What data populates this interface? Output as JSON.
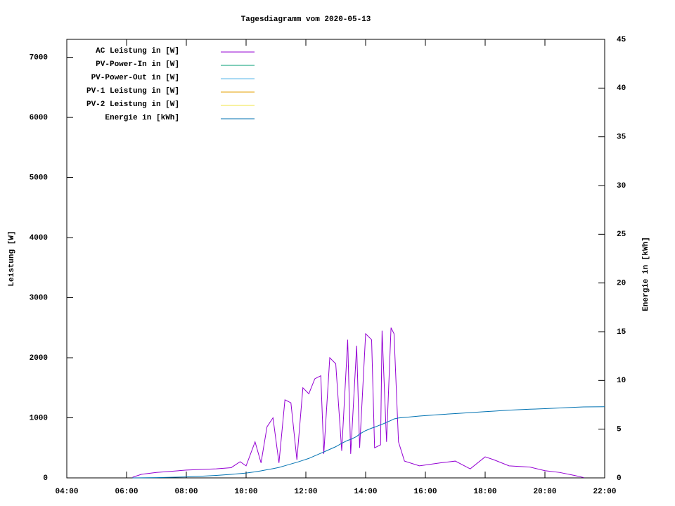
{
  "chart_data": {
    "type": "line",
    "title": "Tagesdiagramm vom 2020-05-13",
    "y_label": "Leistung [W]",
    "y2_label": "Energie in [kWh]",
    "x": [
      6.2,
      6.5,
      7.0,
      7.5,
      8.0,
      8.5,
      9.0,
      9.5,
      9.8,
      10.0,
      10.3,
      10.5,
      10.7,
      10.9,
      11.1,
      11.3,
      11.5,
      11.7,
      11.9,
      12.1,
      12.3,
      12.5,
      12.6,
      12.8,
      13.0,
      13.2,
      13.4,
      13.5,
      13.7,
      13.8,
      14.0,
      14.2,
      14.3,
      14.5,
      14.55,
      14.7,
      14.85,
      14.95,
      15.1,
      15.3,
      15.8,
      16.5,
      17.0,
      17.5,
      18.0,
      18.3,
      18.8,
      19.5,
      20.0,
      20.5,
      21.0,
      21.3,
      22.0
    ],
    "xlim": [
      4,
      22
    ],
    "xticks": [
      {
        "value": 4,
        "label": "04:00"
      },
      {
        "value": 6,
        "label": "06:00"
      },
      {
        "value": 8,
        "label": "08:00"
      },
      {
        "value": 10,
        "label": "10:00"
      },
      {
        "value": 12,
        "label": "12:00"
      },
      {
        "value": 14,
        "label": "14:00"
      },
      {
        "value": 16,
        "label": "16:00"
      },
      {
        "value": 18,
        "label": "18:00"
      },
      {
        "value": 20,
        "label": "20:00"
      },
      {
        "value": 22,
        "label": "22:00"
      }
    ],
    "ylim": [
      0,
      7300
    ],
    "yticks": [
      0,
      1000,
      2000,
      3000,
      4000,
      5000,
      6000,
      7000
    ],
    "y2lim": [
      0,
      45
    ],
    "y2ticks": [
      0,
      5,
      10,
      15,
      20,
      25,
      30,
      35,
      40,
      45
    ],
    "legend": "top-left",
    "series": [
      {
        "name": "AC Leistung in [W]",
        "color": "#9400d3",
        "values": [
          10,
          60,
          90,
          110,
          130,
          140,
          150,
          170,
          270,
          200,
          600,
          250,
          850,
          1000,
          250,
          1300,
          1250,
          300,
          1500,
          1400,
          1650,
          1700,
          400,
          2000,
          1900,
          450,
          2300,
          400,
          2200,
          500,
          2400,
          2300,
          500,
          550,
          2450,
          600,
          2500,
          2400,
          600,
          280,
          200,
          250,
          280,
          150,
          350,
          300,
          200,
          180,
          120,
          90,
          40,
          5,
          null
        ]
      },
      {
        "name": "PV-Power-In in [W]",
        "color": "#009e73",
        "values": [
          null,
          null,
          null,
          null,
          null,
          null,
          null,
          null,
          null,
          null,
          null,
          null,
          null,
          null,
          null,
          null,
          null,
          null,
          null,
          null,
          null,
          null,
          null,
          null,
          null,
          null,
          null,
          null,
          null,
          null,
          null,
          null,
          null,
          null,
          null,
          null,
          null,
          null,
          null,
          null,
          null,
          null,
          null,
          null,
          null,
          null,
          null,
          null,
          null,
          null,
          null,
          null,
          null
        ]
      },
      {
        "name": "PV-Power-Out in [W]",
        "color": "#56b4e9",
        "values": [
          null,
          null,
          null,
          null,
          null,
          null,
          null,
          null,
          null,
          null,
          null,
          null,
          null,
          null,
          null,
          null,
          null,
          null,
          null,
          null,
          null,
          null,
          null,
          null,
          null,
          null,
          null,
          null,
          null,
          null,
          null,
          null,
          null,
          null,
          null,
          null,
          null,
          null,
          null,
          null,
          null,
          null,
          null,
          null,
          null,
          null,
          null,
          null,
          null,
          null,
          null,
          null,
          null
        ]
      },
      {
        "name": "PV-1 Leistung in [W]",
        "color": "#e69f00",
        "values": [
          null,
          null,
          null,
          null,
          null,
          null,
          null,
          null,
          null,
          null,
          null,
          null,
          null,
          null,
          null,
          null,
          null,
          null,
          null,
          null,
          null,
          null,
          null,
          null,
          null,
          null,
          null,
          null,
          null,
          null,
          null,
          null,
          null,
          null,
          null,
          null,
          null,
          null,
          null,
          null,
          null,
          null,
          null,
          null,
          null,
          null,
          null,
          null,
          null,
          null,
          null,
          null,
          null
        ]
      },
      {
        "name": "PV-2 Leistung in [W]",
        "color": "#f0e442",
        "values": [
          null,
          null,
          null,
          null,
          null,
          null,
          null,
          null,
          null,
          null,
          null,
          null,
          null,
          null,
          null,
          null,
          null,
          null,
          null,
          null,
          null,
          null,
          null,
          null,
          null,
          null,
          null,
          null,
          null,
          null,
          null,
          null,
          null,
          null,
          null,
          null,
          null,
          null,
          null,
          null,
          null,
          null,
          null,
          null,
          null,
          null,
          null,
          null,
          null,
          null,
          null,
          null,
          null
        ]
      },
      {
        "name": "Energie in [kWh]",
        "color": "#0072b2",
        "axis": "y2",
        "values": [
          0,
          0.01,
          0.03,
          0.06,
          0.1,
          0.17,
          0.25,
          0.36,
          0.44,
          0.5,
          0.62,
          0.72,
          0.84,
          0.95,
          1.07,
          1.25,
          1.43,
          1.6,
          1.8,
          2.0,
          2.27,
          2.53,
          2.66,
          2.93,
          3.2,
          3.55,
          3.85,
          3.95,
          4.25,
          4.5,
          4.85,
          5.1,
          5.2,
          5.45,
          5.5,
          5.7,
          5.9,
          6.05,
          6.15,
          6.2,
          6.35,
          6.5,
          6.6,
          6.7,
          6.8,
          6.85,
          6.95,
          7.05,
          7.1,
          7.18,
          7.25,
          7.28,
          7.3
        ]
      }
    ]
  }
}
